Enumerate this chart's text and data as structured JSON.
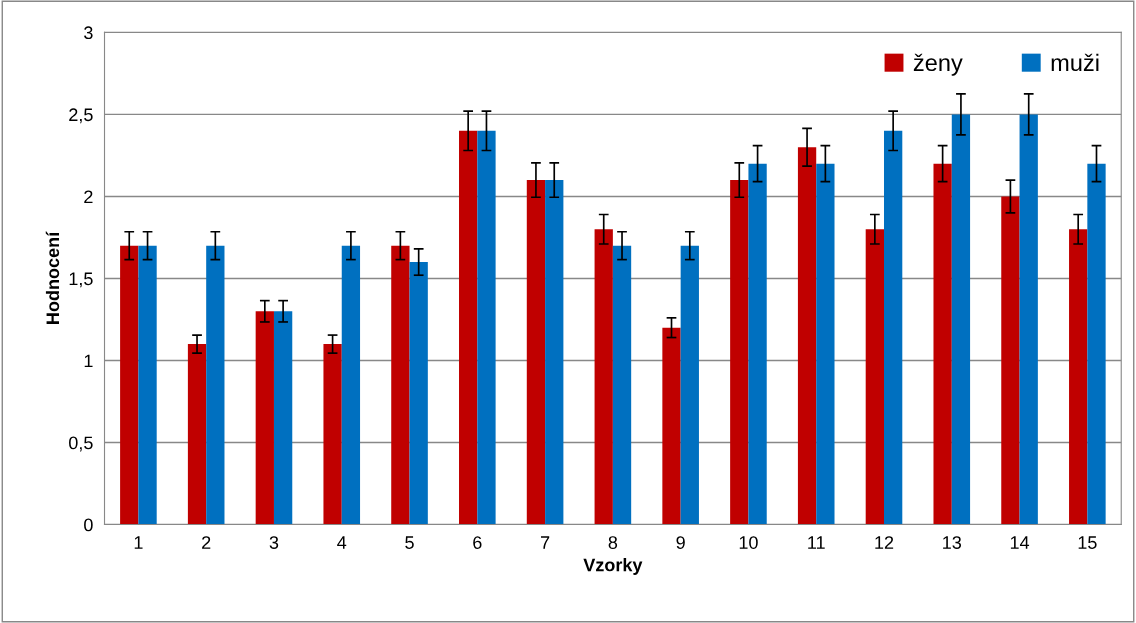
{
  "chart_data": {
    "type": "bar",
    "xlabel": "Vzorky",
    "ylabel": "Hodnocení",
    "categories": [
      "1",
      "2",
      "3",
      "4",
      "5",
      "6",
      "7",
      "8",
      "9",
      "10",
      "11",
      "12",
      "13",
      "14",
      "15"
    ],
    "series": [
      {
        "name": "ženy",
        "color": "#c00000",
        "values": [
          1.7,
          1.1,
          1.3,
          1.1,
          1.7,
          2.4,
          2.1,
          1.8,
          1.2,
          2.1,
          2.3,
          1.8,
          2.2,
          2.0,
          1.8
        ],
        "errors": [
          0.085,
          0.055,
          0.065,
          0.055,
          0.085,
          0.12,
          0.105,
          0.09,
          0.06,
          0.105,
          0.115,
          0.09,
          0.11,
          0.1,
          0.09
        ]
      },
      {
        "name": "muži",
        "color": "#0070c0",
        "values": [
          1.7,
          1.7,
          1.3,
          1.7,
          1.6,
          2.4,
          2.1,
          1.7,
          1.7,
          2.2,
          2.2,
          2.4,
          2.5,
          2.5,
          2.2
        ],
        "errors": [
          0.085,
          0.085,
          0.065,
          0.085,
          0.08,
          0.12,
          0.105,
          0.085,
          0.085,
          0.11,
          0.11,
          0.12,
          0.125,
          0.125,
          0.11
        ]
      }
    ],
    "ylim": [
      0,
      3
    ],
    "yticks": [
      0,
      {
        "value": 0.5,
        "label": "0,5"
      },
      1,
      {
        "value": 1.5,
        "label": "1,5"
      },
      2,
      {
        "value": 2.5,
        "label": "2,5"
      },
      3
    ],
    "grid": "y",
    "legend": "top right"
  }
}
